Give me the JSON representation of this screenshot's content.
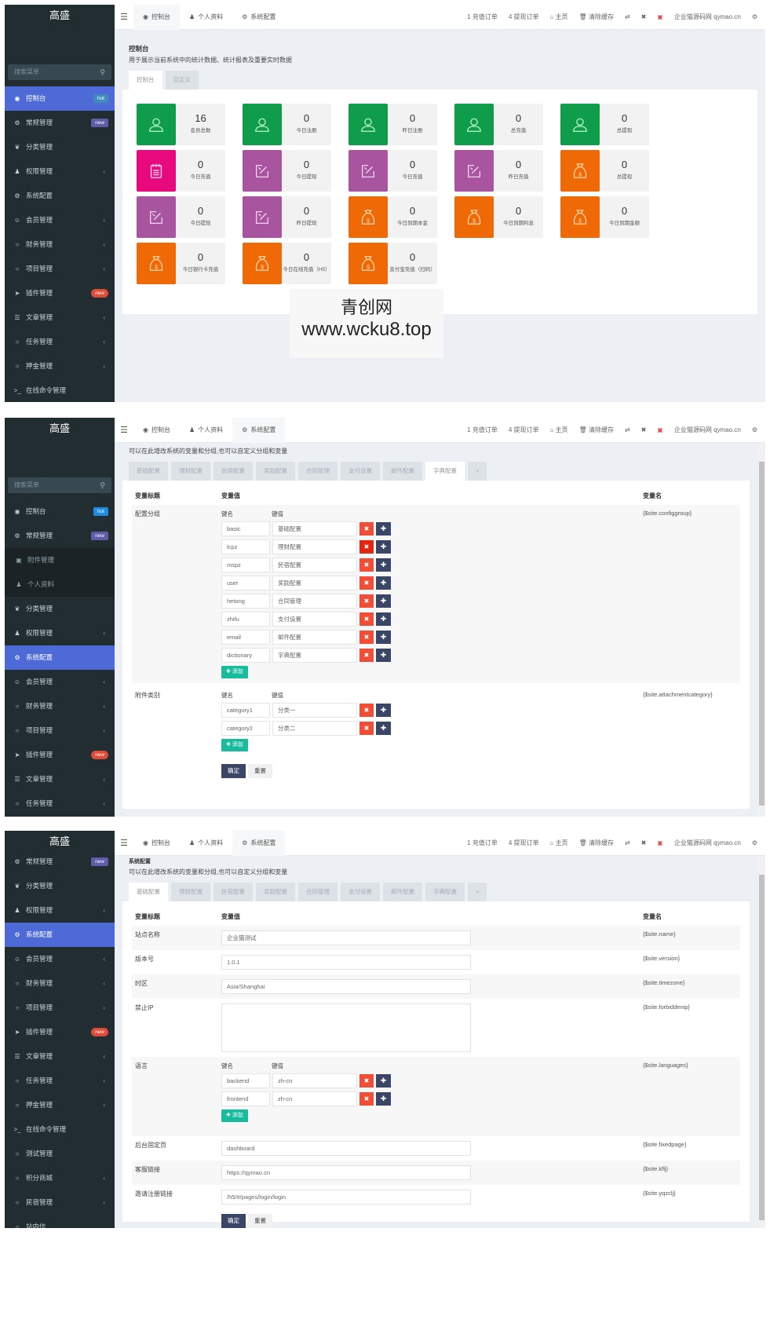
{
  "app": {
    "brand": "高盛"
  },
  "search": {
    "placeholder": "搜索菜单"
  },
  "topbar": {
    "tabs": [
      {
        "label": "控制台",
        "icon": "dashboard-icon"
      },
      {
        "label": "个人资料",
        "icon": "user-icon"
      },
      {
        "label": "系统配置",
        "icon": "gear-icon"
      }
    ],
    "recharge_orders": "1 充值订单",
    "withdraw_orders": "4 提现订单",
    "home": "主页",
    "clear_cache": "清除缓存",
    "site_link": "企业猫源码网 qymao.cn"
  },
  "sidebar1": {
    "items": [
      {
        "label": "控制台",
        "icon": "dashboard-icon",
        "badge": "hot",
        "active": true
      },
      {
        "label": "常规管理",
        "icon": "cogs-icon",
        "badge": "new"
      },
      {
        "label": "分类管理",
        "icon": "leaf-icon"
      },
      {
        "label": "权限管理",
        "icon": "group-icon",
        "chevron": true
      },
      {
        "label": "系统配置",
        "icon": "gear-icon"
      },
      {
        "label": "会员管理",
        "icon": "user-circle-icon",
        "chevron": true
      },
      {
        "label": "财务管理",
        "icon": "circle-icon",
        "chevron": true
      },
      {
        "label": "项目管理",
        "icon": "circle-icon",
        "chevron": true
      },
      {
        "label": "插件管理",
        "icon": "rocket-icon",
        "badge": "new"
      },
      {
        "label": "文章管理",
        "icon": "list-icon",
        "chevron": true
      },
      {
        "label": "任务管理",
        "icon": "circle-icon",
        "chevron": true
      },
      {
        "label": "押金管理",
        "icon": "circle-icon",
        "chevron": true
      },
      {
        "label": "在线命令管理",
        "icon": "terminal-icon"
      },
      {
        "label": "测试管理",
        "icon": "circle-icon"
      }
    ]
  },
  "sidebar2": {
    "items": [
      {
        "label": "控制台",
        "badge": "hot"
      },
      {
        "label": "常规管理",
        "badge": "new"
      },
      {
        "label": "附件管理",
        "sub": true
      },
      {
        "label": "个人资料",
        "sub": true
      },
      {
        "label": "分类管理"
      },
      {
        "label": "权限管理",
        "chevron": true
      },
      {
        "label": "系统配置",
        "active": true
      },
      {
        "label": "会员管理",
        "chevron": true
      },
      {
        "label": "财务管理",
        "chevron": true
      },
      {
        "label": "项目管理",
        "chevron": true
      },
      {
        "label": "插件管理",
        "badge": "new"
      },
      {
        "label": "文章管理",
        "chevron": true
      },
      {
        "label": "任务管理",
        "chevron": true
      },
      {
        "label": "押金管理",
        "chevron": true
      }
    ]
  },
  "sidebar3": {
    "items": [
      {
        "label": "常规管理",
        "badge": "new"
      },
      {
        "label": "分类管理"
      },
      {
        "label": "权限管理",
        "chevron": true
      },
      {
        "label": "系统配置",
        "active": true
      },
      {
        "label": "会员管理",
        "chevron": true
      },
      {
        "label": "财务管理",
        "chevron": true
      },
      {
        "label": "项目管理",
        "chevron": true
      },
      {
        "label": "插件管理",
        "badge": "new"
      },
      {
        "label": "文章管理",
        "chevron": true
      },
      {
        "label": "任务管理",
        "chevron": true
      },
      {
        "label": "押金管理",
        "chevron": true
      },
      {
        "label": "在线命令管理"
      },
      {
        "label": "测试管理"
      },
      {
        "label": "积分商城",
        "chevron": true
      },
      {
        "label": "民宿管理",
        "chevron": true
      },
      {
        "label": "站内信"
      }
    ]
  },
  "dashboard": {
    "title": "控制台",
    "description": "用于展示当前系统中的统计数据、统计报表及重要实时数据",
    "tabs": [
      "控制台",
      "自定义"
    ],
    "tiles": [
      {
        "value": "16",
        "label": "会员总数",
        "color": "#0f9d4b",
        "icon": "user"
      },
      {
        "value": "0",
        "label": "今日注册",
        "color": "#0f9d4b",
        "icon": "user"
      },
      {
        "value": "0",
        "label": "昨日注册",
        "color": "#0f9d4b",
        "icon": "user"
      },
      {
        "value": "0",
        "label": "总充值",
        "color": "#0f9d4b",
        "icon": "user"
      },
      {
        "value": "0",
        "label": "总提现",
        "color": "#0f9d4b",
        "icon": "user"
      },
      {
        "value": "0",
        "label": "今日充值",
        "color": "#e8097f",
        "icon": "notepad"
      },
      {
        "value": "0",
        "label": "今日提现",
        "color": "#a8549e",
        "icon": "edit"
      },
      {
        "value": "0",
        "label": "今日充值",
        "color": "#a8549e",
        "icon": "edit"
      },
      {
        "value": "0",
        "label": "昨日充值",
        "color": "#a8549e",
        "icon": "edit"
      },
      {
        "value": "0",
        "label": "总提现",
        "color": "#ef6a06",
        "icon": "moneybag"
      },
      {
        "value": "0",
        "label": "今日提现",
        "color": "#a8549e",
        "icon": "edit"
      },
      {
        "value": "0",
        "label": "昨日提现",
        "color": "#a8549e",
        "icon": "edit"
      },
      {
        "value": "0",
        "label": "今日到期本金",
        "color": "#ef6a06",
        "icon": "moneybag"
      },
      {
        "value": "0",
        "label": "今日到期利息",
        "color": "#ef6a06",
        "icon": "moneybag"
      },
      {
        "value": "0",
        "label": "今日到期金额",
        "color": "#ef6a06",
        "icon": "moneybag"
      },
      {
        "value": "0",
        "label": "今日银行卡充值",
        "color": "#ef6a06",
        "icon": "moneybag"
      },
      {
        "value": "0",
        "label": "今日在线充值（H5）",
        "color": "#ef6a06",
        "icon": "moneybag"
      },
      {
        "value": "0",
        "label": "支付宝充值（扫码）",
        "color": "#ef6a06",
        "icon": "moneybag"
      }
    ]
  },
  "watermark": {
    "line1": "青创网",
    "line2": "www.wcku8.top"
  },
  "config": {
    "title": "系统配置",
    "description": "可以在此增改系统的变量和分组,也可以自定义分组和变量",
    "tabs": [
      "基础配置",
      "理财配置",
      "民宿配置",
      "奖励配置",
      "合同管理",
      "支付设置",
      "邮件配置",
      "字典配置",
      "+"
    ],
    "col_title": "变量标题",
    "col_value": "变量值",
    "col_name": "变量名",
    "key_label": "键名",
    "value_label": "键值",
    "add_label": "添加",
    "ok_label": "确定",
    "reset_label": "重置"
  },
  "dict": {
    "group_label": "配置分组",
    "group_var": "{$site.configgroup}",
    "groups": [
      {
        "k": "basic",
        "v": "基础配置"
      },
      {
        "k": "lcpz",
        "v": "理财配置"
      },
      {
        "k": "mspz",
        "v": "民宿配置"
      },
      {
        "k": "user",
        "v": "奖励配置"
      },
      {
        "k": "hetong",
        "v": "合同管理"
      },
      {
        "k": "zhifu",
        "v": "支付设置"
      },
      {
        "k": "email",
        "v": "邮件配置"
      },
      {
        "k": "dictionary",
        "v": "字典配置"
      }
    ],
    "attach_label": "附件类别",
    "attach_var": "{$site.attachmentcategory}",
    "attach": [
      {
        "k": "category1",
        "v": "分类一"
      },
      {
        "k": "category2",
        "v": "分类二"
      }
    ]
  },
  "basic": {
    "rows": [
      {
        "label": "站点名称",
        "value": "企业猫测试",
        "var": "{$site.name}"
      },
      {
        "label": "版本号",
        "value": "1.0.1",
        "var": "{$site.version}"
      },
      {
        "label": "时区",
        "value": "Asia/Shanghai",
        "var": "{$site.timezone}"
      },
      {
        "label": "禁止IP",
        "value": "",
        "var": "{$site.forbiddenip}"
      }
    ],
    "lang_label": "语言",
    "lang_var": "{$site.languages}",
    "langs": [
      {
        "k": "backend",
        "v": "zh-cn"
      },
      {
        "k": "frontend",
        "v": "zh-cn"
      }
    ],
    "rows2": [
      {
        "label": "后台固定页",
        "value": "dashboard",
        "var": "{$site.fixedpage}"
      },
      {
        "label": "客服链接",
        "value": "https://qymao.cn",
        "var": "{$site.kflj}"
      },
      {
        "label": "邀请注册链接",
        "value": "/h5/#/pages/login/login",
        "var": "{$site.yqzclj}"
      }
    ]
  }
}
